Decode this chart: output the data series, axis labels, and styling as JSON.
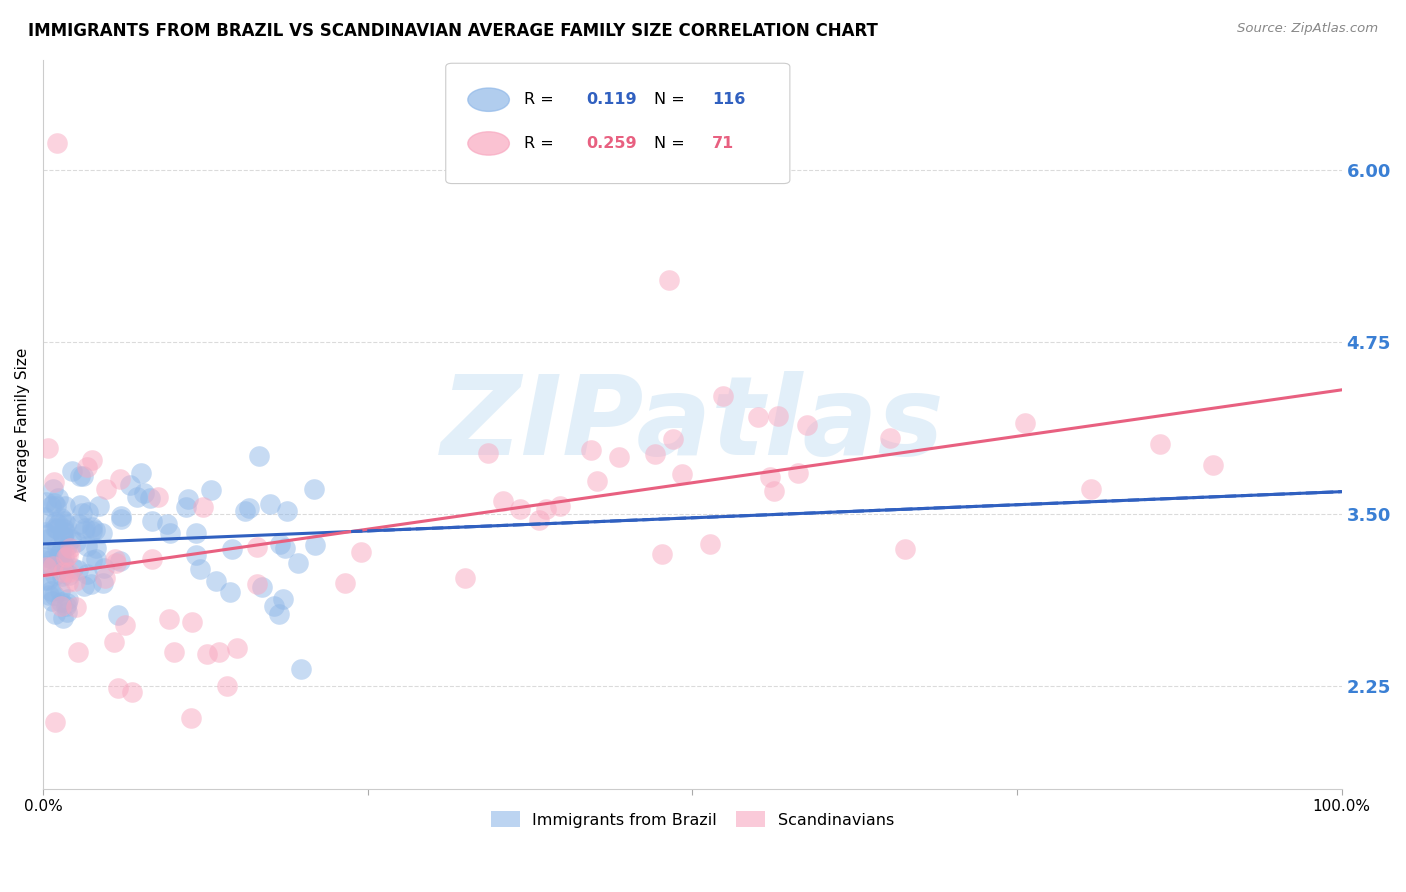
{
  "title": "IMMIGRANTS FROM BRAZIL VS SCANDINAVIAN AVERAGE FAMILY SIZE CORRELATION CHART",
  "source": "Source: ZipAtlas.com",
  "ylabel": "Average Family Size",
  "xlim": [
    0,
    1
  ],
  "ylim": [
    1.5,
    6.8
  ],
  "yticks": [
    2.25,
    3.5,
    4.75,
    6.0
  ],
  "xticks": [
    0.0,
    0.25,
    0.5,
    0.75,
    1.0
  ],
  "xticklabels": [
    "0.0%",
    "",
    "",
    "",
    "100.0%"
  ],
  "watermark": "ZIPatlas",
  "watermark_color": "#b8d8f0",
  "brazil_color": "#90b8e8",
  "scandinavian_color": "#f8a8c0",
  "brazil_line_color": "#3060c0",
  "scandinavian_line_color": "#e86080",
  "brazil_R": 0.119,
  "brazil_N": 116,
  "scandinavian_R": 0.259,
  "scandinavian_N": 71,
  "brazil_intercept": 3.28,
  "brazil_slope": 0.38,
  "scandinavian_intercept": 3.05,
  "scandinavian_slope": 1.35,
  "legend_R1": "0.119",
  "legend_N1": "116",
  "legend_R2": "0.259",
  "legend_N2": "71",
  "legend_label1": "Immigrants from Brazil",
  "legend_label2": "Scandinavians"
}
